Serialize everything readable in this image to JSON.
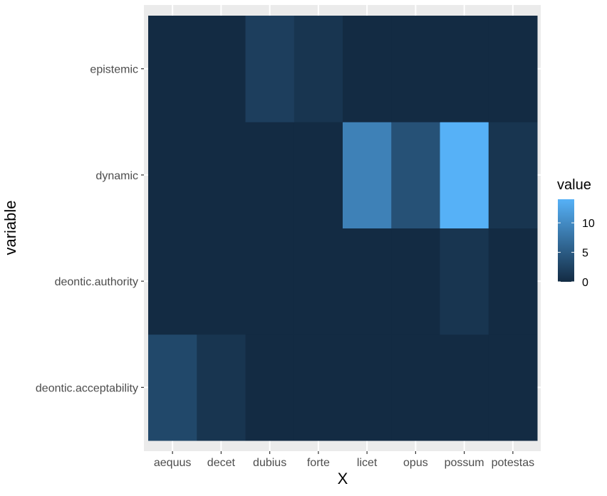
{
  "chart_data": {
    "type": "heatmap",
    "xlabel": "X",
    "ylabel": "variable",
    "x_categories": [
      "aequus",
      "decet",
      "dubius",
      "forte",
      "licet",
      "opus",
      "possum",
      "potestas"
    ],
    "y_categories": [
      "deontic.acceptability",
      "deontic.authority",
      "dynamic",
      "epistemic"
    ],
    "values": {
      "epistemic": [
        0,
        0,
        2,
        1,
        0,
        0,
        0,
        0
      ],
      "dynamic": [
        0,
        0,
        0,
        0,
        9,
        4,
        14,
        1
      ],
      "deontic.authority": [
        0,
        0,
        0,
        0,
        0,
        0,
        1,
        0
      ],
      "deontic.acceptability": [
        3,
        1,
        0,
        0,
        0,
        0,
        0,
        0
      ]
    },
    "legend": {
      "title": "value",
      "ticks": [
        0,
        5,
        10
      ],
      "tick_labels": [
        "0",
        "5",
        "10"
      ],
      "range": [
        0,
        14
      ],
      "low_color": "#132B43",
      "high_color": "#56B1F7",
      "placement": "right"
    },
    "panel_background": "#EBEBEB",
    "grid": true
  }
}
